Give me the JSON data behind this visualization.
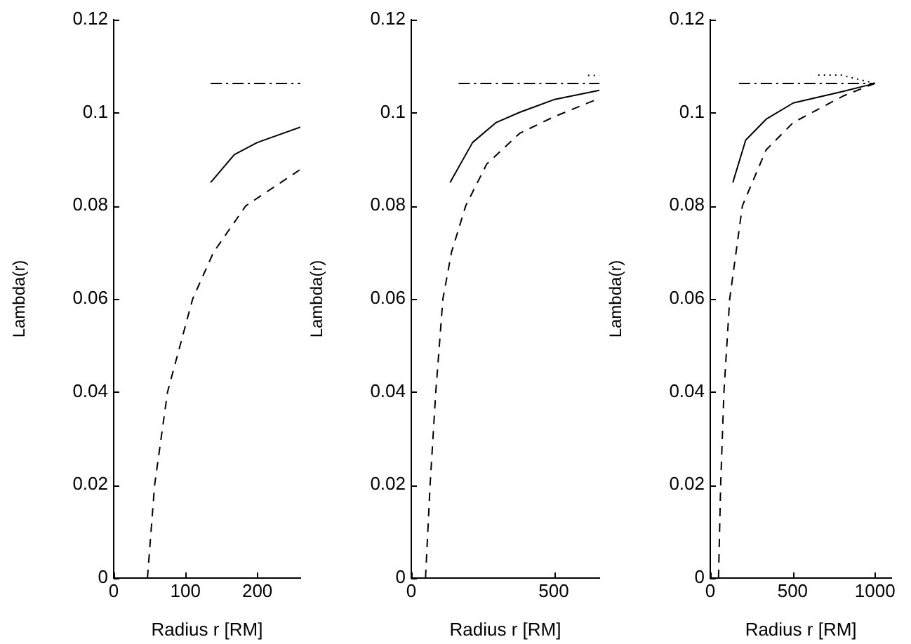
{
  "chart_data": [
    {
      "type": "line",
      "xlabel": "Radius r [RM]",
      "ylabel": "Lambda(r)",
      "xlim": [
        0,
        260
      ],
      "xticks": [
        0,
        100,
        200
      ],
      "ylim": [
        0,
        0.12
      ],
      "yticks": [
        0,
        0.02,
        0.04,
        0.06,
        0.08,
        0.1,
        0.12
      ],
      "grid": false,
      "legend": false,
      "marker": "none",
      "series": [
        {
          "color": "#000000",
          "line_style": "solid",
          "x": [
            135,
            168,
            200,
            260
          ],
          "values": [
            0.085,
            0.091,
            0.0936,
            0.0969
          ]
        },
        {
          "color": "#000000",
          "line_style": "dashed",
          "x": [
            47,
            57,
            75,
            110,
            139,
            184,
            260
          ],
          "values": [
            0,
            0.02,
            0.04,
            0.06,
            0.07,
            0.08,
            0.0878
          ]
        },
        {
          "color": "#000000",
          "line_style": "dashdot",
          "x": [
            135,
            260
          ],
          "values": [
            0.1063,
            0.1063
          ]
        }
      ]
    },
    {
      "type": "line",
      "xlabel": "Radius r [RM]",
      "ylabel": "Lambda(r)",
      "xlim": [
        0,
        660
      ],
      "xticks": [
        0,
        500
      ],
      "ylim": [
        0,
        0.12
      ],
      "yticks": [
        0,
        0.02,
        0.04,
        0.06,
        0.08,
        0.1,
        0.12
      ],
      "grid": false,
      "legend": false,
      "marker": "none",
      "series": [
        {
          "color": "#000000",
          "line_style": "solid",
          "x": [
            136,
            215,
            298,
            381,
            500,
            660
          ],
          "values": [
            0.085,
            0.0936,
            0.0979,
            0.1001,
            0.1028,
            0.1048
          ]
        },
        {
          "color": "#000000",
          "line_style": "dashed",
          "x": [
            50,
            66,
            86,
            111,
            141,
            191,
            265,
            381,
            500,
            660
          ],
          "values": [
            0,
            0.02,
            0.04,
            0.06,
            0.07,
            0.08,
            0.089,
            0.0956,
            0.0991,
            0.1031
          ]
        },
        {
          "color": "#000000",
          "line_style": "dashdot",
          "x": [
            166,
            660
          ],
          "values": [
            0.1063,
            0.1063
          ]
        },
        {
          "color": "#000000",
          "line_style": "dotted",
          "x": [
            620,
            660
          ],
          "values": [
            0.108,
            0.108
          ]
        }
      ]
    },
    {
      "type": "line",
      "xlabel": "Radius r [RM]",
      "ylabel": "Lambda(r)",
      "xlim": [
        0,
        1100
      ],
      "xticks": [
        0,
        500,
        1000
      ],
      "ylim": [
        0,
        0.12
      ],
      "yticks": [
        0,
        0.02,
        0.04,
        0.06,
        0.08,
        0.1,
        0.12
      ],
      "grid": false,
      "legend": false,
      "marker": "none",
      "series": [
        {
          "color": "#000000",
          "line_style": "solid",
          "x": [
            137,
            215,
            339,
            504,
            807,
            1000
          ],
          "values": [
            0.085,
            0.0941,
            0.0986,
            0.1021,
            0.1046,
            0.1063
          ]
        },
        {
          "color": "#000000",
          "line_style": "dashed",
          "x": [
            50,
            63,
            83,
            118,
            195,
            339,
            504,
            807,
            1000
          ],
          "values": [
            0,
            0.02,
            0.04,
            0.06,
            0.08,
            0.092,
            0.0979,
            0.1036,
            0.1063
          ]
        },
        {
          "color": "#000000",
          "line_style": "dashdot",
          "x": [
            174,
            1000
          ],
          "values": [
            0.1063,
            0.1063
          ]
        },
        {
          "color": "#000000",
          "line_style": "dotted",
          "x": [
            655,
            793,
            1000
          ],
          "values": [
            0.1081,
            0.1081,
            0.1063
          ]
        }
      ]
    }
  ]
}
